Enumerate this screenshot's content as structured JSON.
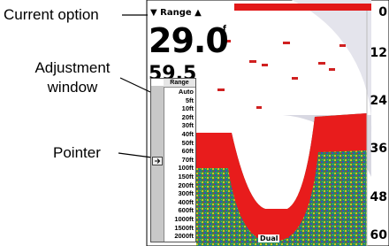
{
  "annotations": {
    "current_option": "Current option",
    "adjustment_window": "Adjustment window",
    "pointer": "Pointer"
  },
  "screen": {
    "header": "▼ Range ▲",
    "depth_reading": "29.0",
    "depth_unit": "ft",
    "temperature_reading": "59.5",
    "window_title": "Range",
    "options": [
      "Auto",
      "5ft",
      "10ft",
      "20ft",
      "30ft",
      "40ft",
      "50ft",
      "60ft",
      "70ft",
      "100ft",
      "150ft",
      "200ft",
      "300ft",
      "400ft",
      "600ft",
      "1000ft",
      "1500ft",
      "2000ft"
    ],
    "depth_scale": [
      "0",
      "12",
      "24",
      "36",
      "48",
      "60"
    ],
    "frequency_mode": "Dual"
  }
}
